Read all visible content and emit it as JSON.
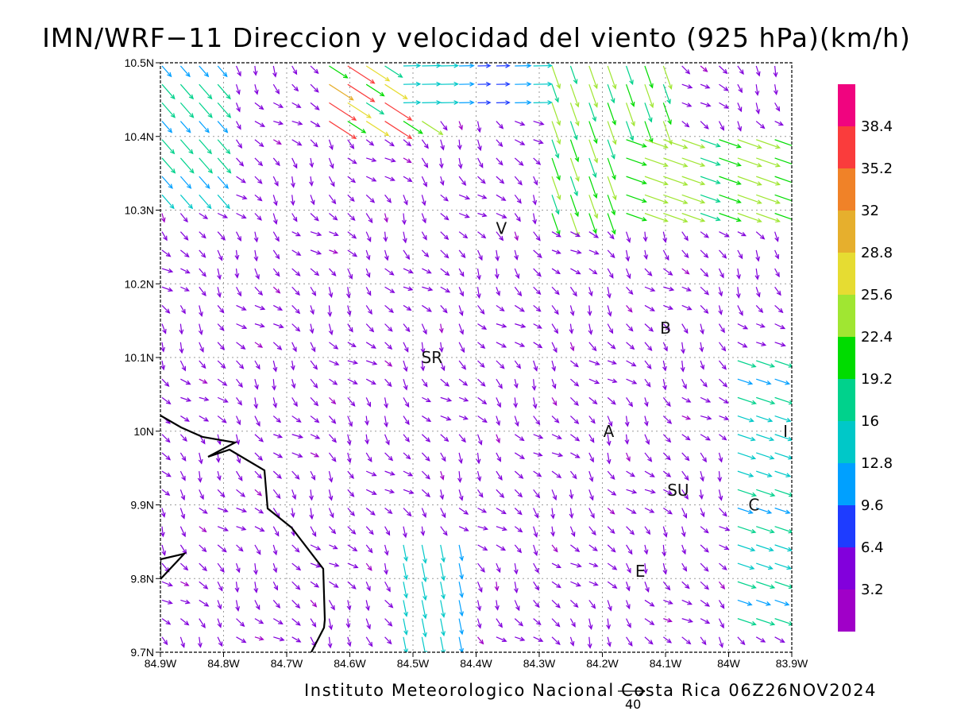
{
  "title": "IMN/WRF−11 Direccion y velocidad del viento (925 hPa)(km/h)",
  "footer": "Instituto Meteorologico Nacional Costa Rica 06Z26NOV2024",
  "reference_vector": {
    "value": "40"
  },
  "axes": {
    "x_ticks": [
      "84.9W",
      "84.8W",
      "84.7W",
      "84.6W",
      "84.5W",
      "84.4W",
      "84.3W",
      "84.2W",
      "84.1W",
      "84W",
      "83.9W"
    ],
    "y_ticks": [
      "10.5N",
      "10.4N",
      "10.3N",
      "10.2N",
      "10.1N",
      "10N",
      "9.9N",
      "9.8N",
      "9.7N"
    ],
    "x_range": [
      -84.9,
      -83.9
    ],
    "y_range": [
      9.7,
      10.5
    ],
    "grid": true
  },
  "colorbar": {
    "labels": [
      "38.4",
      "35.2",
      "32",
      "28.8",
      "25.6",
      "22.4",
      "19.2",
      "16",
      "12.8",
      "9.6",
      "6.4",
      "3.2"
    ],
    "colors": [
      "#f0047f",
      "#fa3c3c",
      "#f08228",
      "#e6af2d",
      "#e6dc32",
      "#a0e632",
      "#00dc00",
      "#00d28c",
      "#00c8c8",
      "#00a0ff",
      "#1e3cff",
      "#8200dc",
      "#a000c8"
    ]
  },
  "places": [
    {
      "label": "V",
      "lon": -84.36,
      "lat": 10.275
    },
    {
      "label": "B",
      "lon": -84.1,
      "lat": 10.14
    },
    {
      "label": "SR",
      "lon": -84.47,
      "lat": 10.1
    },
    {
      "label": "A",
      "lon": -84.19,
      "lat": 10.0
    },
    {
      "label": "I",
      "lon": -83.91,
      "lat": 10.0
    },
    {
      "label": "SU",
      "lon": -84.08,
      "lat": 9.92
    },
    {
      "label": "C",
      "lon": -83.96,
      "lat": 9.9
    },
    {
      "label": "E",
      "lon": -84.14,
      "lat": 9.81
    }
  ]
}
